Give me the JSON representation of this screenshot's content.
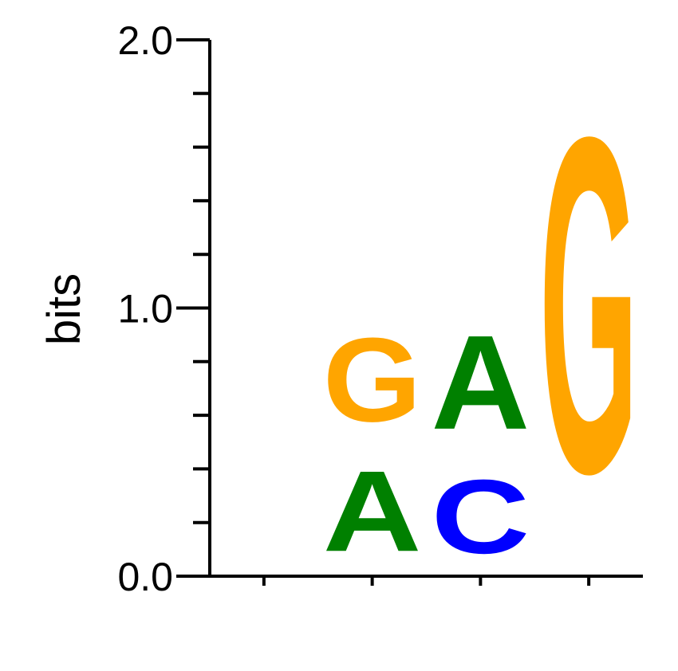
{
  "chart_data": {
    "type": "sequence-logo",
    "ylabel": "bits",
    "ylim": [
      0,
      2.0
    ],
    "y_ticks": [
      "0.0",
      "1.0",
      "2.0"
    ],
    "minor_y_ticks": [
      0.2,
      0.4,
      0.6,
      0.8,
      1.2,
      1.4,
      1.6,
      1.8
    ],
    "positions": [
      {
        "position": 1,
        "letters": []
      },
      {
        "position": 2,
        "letters": [
          {
            "base": "A",
            "bits": 0.48,
            "color": "#008000"
          },
          {
            "base": "G",
            "bits": 0.5,
            "color": "#FFA500"
          }
        ]
      },
      {
        "position": 3,
        "letters": [
          {
            "base": "C",
            "bits": 0.44,
            "color": "#0000FF"
          },
          {
            "base": "A",
            "bits": 0.56,
            "color": "#008000"
          }
        ]
      },
      {
        "position": 4,
        "letters": [
          {
            "base": "G",
            "bits": 2.0,
            "color": "#FFA500"
          }
        ]
      }
    ]
  }
}
